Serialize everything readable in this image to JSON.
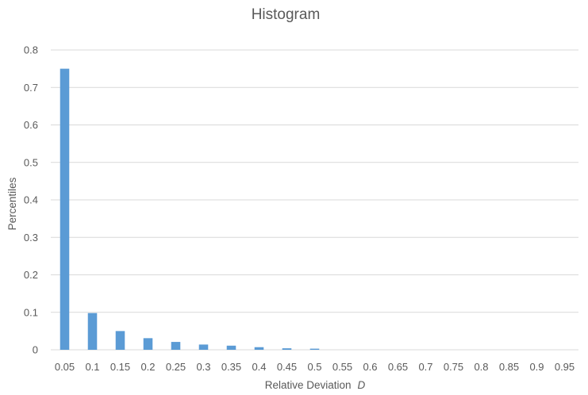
{
  "chart_data": {
    "type": "bar",
    "title": "Histogram",
    "xlabel": "Relative Deviation",
    "xlabel_var": "D",
    "ylabel": "Percentiles",
    "categories": [
      "0.05",
      "0.1",
      "0.15",
      "0.2",
      "0.25",
      "0.3",
      "0.35",
      "0.4",
      "0.45",
      "0.5",
      "0.55",
      "0.6",
      "0.65",
      "0.7",
      "0.75",
      "0.8",
      "0.85",
      "0.9",
      "0.95"
    ],
    "values": [
      0.75,
      0.098,
      0.05,
      0.031,
      0.021,
      0.014,
      0.011,
      0.007,
      0.004,
      0.003,
      0,
      0,
      0,
      0,
      0,
      0,
      0,
      0,
      0
    ],
    "yticks": [
      "0",
      "0.1",
      "0.2",
      "0.3",
      "0.4",
      "0.5",
      "0.6",
      "0.7",
      "0.8"
    ],
    "ylim": [
      0,
      0.8
    ],
    "grid": true,
    "legend": "none",
    "colors": {
      "bar": "#5b9bd5",
      "grid": "#d9d9d9",
      "text": "#595959"
    }
  }
}
